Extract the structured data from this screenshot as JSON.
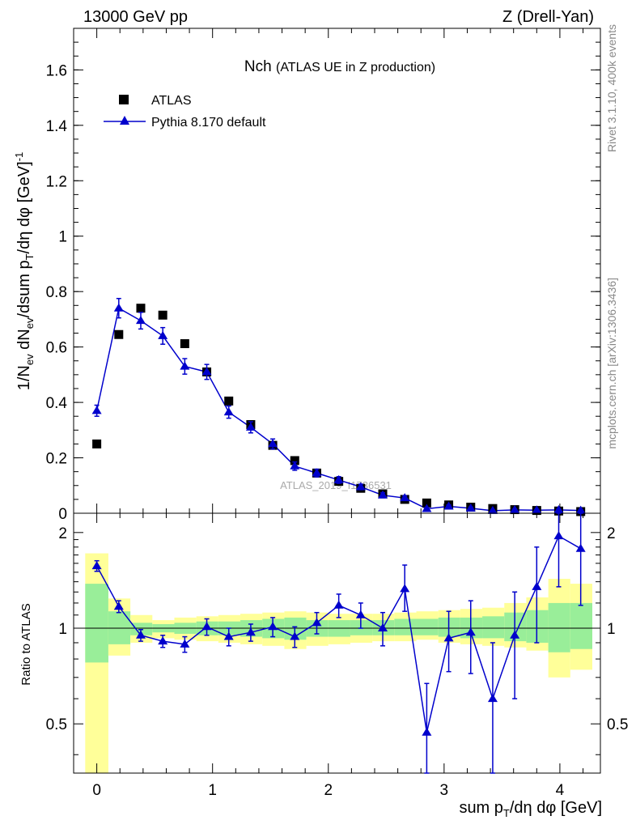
{
  "header": {
    "energy": "13000 GeV pp",
    "process": "Z (Drell-Yan)"
  },
  "side_labels": {
    "rivet": "Rivet 3.1.10,  400k events",
    "mcplots": "mcplots.cern.ch [arXiv:1306.3436]"
  },
  "watermark": "ATLAS_2019_I1736531",
  "colors": {
    "mc": "#0000cc",
    "data": "#000000",
    "band_outer": "#ffff99",
    "band_inner": "#99ee99"
  },
  "chart_data": [
    {
      "name": "main",
      "type": "scatter",
      "title": "Nch",
      "subtitle": "(ATLAS UE in Z production)",
      "xlabel": "sum p_T/dη dφ [GeV]",
      "ylabel": "1/N_ev dN_ev/dsum p_T/dη dφ  [GeV]^-1",
      "xlim": [
        -0.2,
        4.35
      ],
      "ylim": [
        0,
        1.75
      ],
      "yticks": [
        0,
        0.2,
        0.4,
        0.6,
        0.8,
        1,
        1.2,
        1.4,
        1.6
      ],
      "ytick_labels": [
        "0",
        "0.2",
        "0.4",
        "0.6",
        "0.8",
        "1",
        "1.2",
        "1.4",
        "1.6"
      ],
      "legend": [
        {
          "label": "ATLAS",
          "marker": "square"
        },
        {
          "label": "Pythia 8.170 default",
          "marker": "triangle"
        }
      ],
      "x": [
        0.0,
        0.19,
        0.38,
        0.57,
        0.76,
        0.95,
        1.14,
        1.33,
        1.52,
        1.71,
        1.9,
        2.09,
        2.28,
        2.47,
        2.66,
        2.85,
        3.04,
        3.23,
        3.42,
        3.61,
        3.8,
        3.99,
        4.18
      ],
      "series": [
        {
          "name": "ATLAS",
          "values": [
            0.25,
            0.645,
            0.74,
            0.715,
            0.612,
            0.51,
            0.405,
            0.32,
            0.245,
            0.19,
            0.145,
            0.115,
            0.09,
            0.07,
            0.05,
            0.037,
            0.03,
            0.022,
            0.017,
            0.013,
            0.01,
            0.008,
            0.006
          ]
        },
        {
          "name": "Pythia 8.170 default",
          "values": [
            0.37,
            0.74,
            0.695,
            0.64,
            0.53,
            0.51,
            0.365,
            0.31,
            0.25,
            0.17,
            0.145,
            0.12,
            0.095,
            0.065,
            0.055,
            0.016,
            0.025,
            0.018,
            0.009,
            0.012,
            0.011,
            0.012,
            0.01
          ],
          "errors": [
            0.02,
            0.035,
            0.03,
            0.03,
            0.028,
            0.027,
            0.022,
            0.02,
            0.018,
            0.015,
            0.014,
            0.012,
            0.01,
            0.009,
            0.008,
            0.005,
            0.005,
            0.004,
            0.003,
            0.003,
            0.003,
            0.003,
            0.003
          ]
        }
      ]
    },
    {
      "name": "ratio",
      "type": "scatter",
      "ylabel": "Ratio to ATLAS",
      "ylim": [
        0.35,
        2.3
      ],
      "yticks": [
        0.5,
        1,
        2
      ],
      "ytick_labels": [
        "0.5",
        "1",
        "2"
      ],
      "xticks": [
        0,
        1,
        2,
        3,
        4
      ],
      "xtick_labels": [
        "0",
        "1",
        "2",
        "3",
        "4"
      ],
      "x": [
        0.0,
        0.19,
        0.38,
        0.57,
        0.76,
        0.95,
        1.14,
        1.33,
        1.52,
        1.71,
        1.9,
        2.09,
        2.28,
        2.47,
        2.66,
        2.85,
        3.04,
        3.23,
        3.42,
        3.61,
        3.8,
        3.99,
        4.18
      ],
      "bin_edges": [
        -0.1,
        0.1,
        0.29,
        0.48,
        0.67,
        0.86,
        1.05,
        1.24,
        1.43,
        1.62,
        1.81,
        2.0,
        2.19,
        2.38,
        2.57,
        2.76,
        2.95,
        3.14,
        3.33,
        3.52,
        3.71,
        3.9,
        4.09,
        4.28
      ],
      "band_outer": {
        "lo": [
          0.35,
          0.82,
          0.9,
          0.93,
          0.92,
          0.91,
          0.9,
          0.89,
          0.88,
          0.86,
          0.88,
          0.89,
          0.9,
          0.91,
          0.91,
          0.92,
          0.9,
          0.89,
          0.88,
          0.87,
          0.85,
          0.7,
          0.74
        ],
        "hi": [
          1.72,
          1.24,
          1.1,
          1.06,
          1.08,
          1.09,
          1.1,
          1.11,
          1.12,
          1.13,
          1.12,
          1.11,
          1.11,
          1.11,
          1.12,
          1.13,
          1.14,
          1.15,
          1.16,
          1.2,
          1.25,
          1.43,
          1.38
        ]
      },
      "band_inner": {
        "lo": [
          0.78,
          0.89,
          0.95,
          0.97,
          0.96,
          0.95,
          0.95,
          0.94,
          0.93,
          0.92,
          0.94,
          0.94,
          0.95,
          0.95,
          0.95,
          0.95,
          0.94,
          0.93,
          0.93,
          0.91,
          0.9,
          0.84,
          0.86
        ],
        "hi": [
          1.38,
          1.13,
          1.04,
          1.03,
          1.04,
          1.05,
          1.05,
          1.06,
          1.07,
          1.08,
          1.06,
          1.06,
          1.06,
          1.06,
          1.07,
          1.07,
          1.08,
          1.08,
          1.09,
          1.12,
          1.14,
          1.2,
          1.2
        ]
      },
      "series": [
        {
          "name": "Pythia 8.170 default",
          "values": [
            1.57,
            1.17,
            0.95,
            0.91,
            0.89,
            1.01,
            0.94,
            0.97,
            1.01,
            0.94,
            1.04,
            1.18,
            1.1,
            1.0,
            1.33,
            0.47,
            0.93,
            0.97,
            0.6,
            0.95,
            1.35,
            1.95,
            1.78
          ],
          "err_lo": [
            0.06,
            0.05,
            0.04,
            0.04,
            0.05,
            0.06,
            0.06,
            0.06,
            0.07,
            0.07,
            0.08,
            0.1,
            0.1,
            0.12,
            0.2,
            0.2,
            0.2,
            0.25,
            0.3,
            0.35,
            0.45,
            0.6,
            0.6
          ],
          "err_hi": [
            0.06,
            0.05,
            0.04,
            0.04,
            0.05,
            0.06,
            0.06,
            0.06,
            0.07,
            0.07,
            0.08,
            0.1,
            0.1,
            0.12,
            0.25,
            0.2,
            0.2,
            0.25,
            0.3,
            0.35,
            0.45,
            0.6,
            0.6
          ]
        }
      ]
    }
  ]
}
